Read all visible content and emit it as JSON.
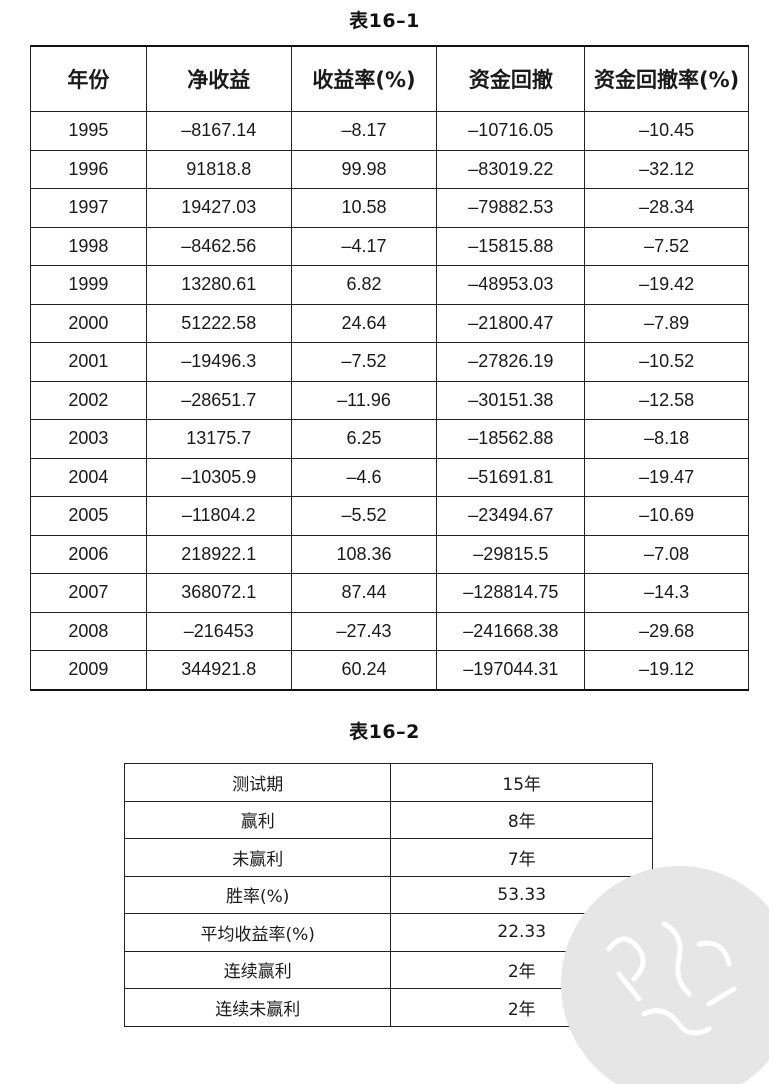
{
  "table1": {
    "caption": "表16–1",
    "headers": [
      "年份",
      "净收益",
      "收益率(%)",
      "资金回撤",
      "资金回撤率(%)"
    ],
    "rows": [
      [
        "1995",
        "–8167.14",
        "–8.17",
        "–10716.05",
        "–10.45"
      ],
      [
        "1996",
        "91818.8",
        "99.98",
        "–83019.22",
        "–32.12"
      ],
      [
        "1997",
        "19427.03",
        "10.58",
        "–79882.53",
        "–28.34"
      ],
      [
        "1998",
        "–8462.56",
        "–4.17",
        "–15815.88",
        "–7.52"
      ],
      [
        "1999",
        "13280.61",
        "6.82",
        "–48953.03",
        "–19.42"
      ],
      [
        "2000",
        "51222.58",
        "24.64",
        "–21800.47",
        "–7.89"
      ],
      [
        "2001",
        "–19496.3",
        "–7.52",
        "–27826.19",
        "–10.52"
      ],
      [
        "2002",
        "–28651.7",
        "–11.96",
        "–30151.38",
        "–12.58"
      ],
      [
        "2003",
        "13175.7",
        "6.25",
        "–18562.88",
        "–8.18"
      ],
      [
        "2004",
        "–10305.9",
        "–4.6",
        "–51691.81",
        "–19.47"
      ],
      [
        "2005",
        "–11804.2",
        "–5.52",
        "–23494.67",
        "–10.69"
      ],
      [
        "2006",
        "218922.1",
        "108.36",
        "–29815.5",
        "–7.08"
      ],
      [
        "2007",
        "368072.1",
        "87.44",
        "–128814.75",
        "–14.3"
      ],
      [
        "2008",
        "–216453",
        "–27.43",
        "–241668.38",
        "–29.68"
      ],
      [
        "2009",
        "344921.8",
        "60.24",
        "–197044.31",
        "–19.12"
      ]
    ]
  },
  "table2": {
    "caption": "表16–2",
    "rows": [
      [
        "测试期",
        "15年"
      ],
      [
        "赢利",
        "8年"
      ],
      [
        "未赢利",
        "7年"
      ],
      [
        "胜率(%)",
        "53.33"
      ],
      [
        "平均收益率(%)",
        "22.33"
      ],
      [
        "连续赢利",
        "2年"
      ],
      [
        "连续未赢利",
        "2年"
      ]
    ]
  },
  "watermark": {
    "color": "#e6e6e6"
  }
}
